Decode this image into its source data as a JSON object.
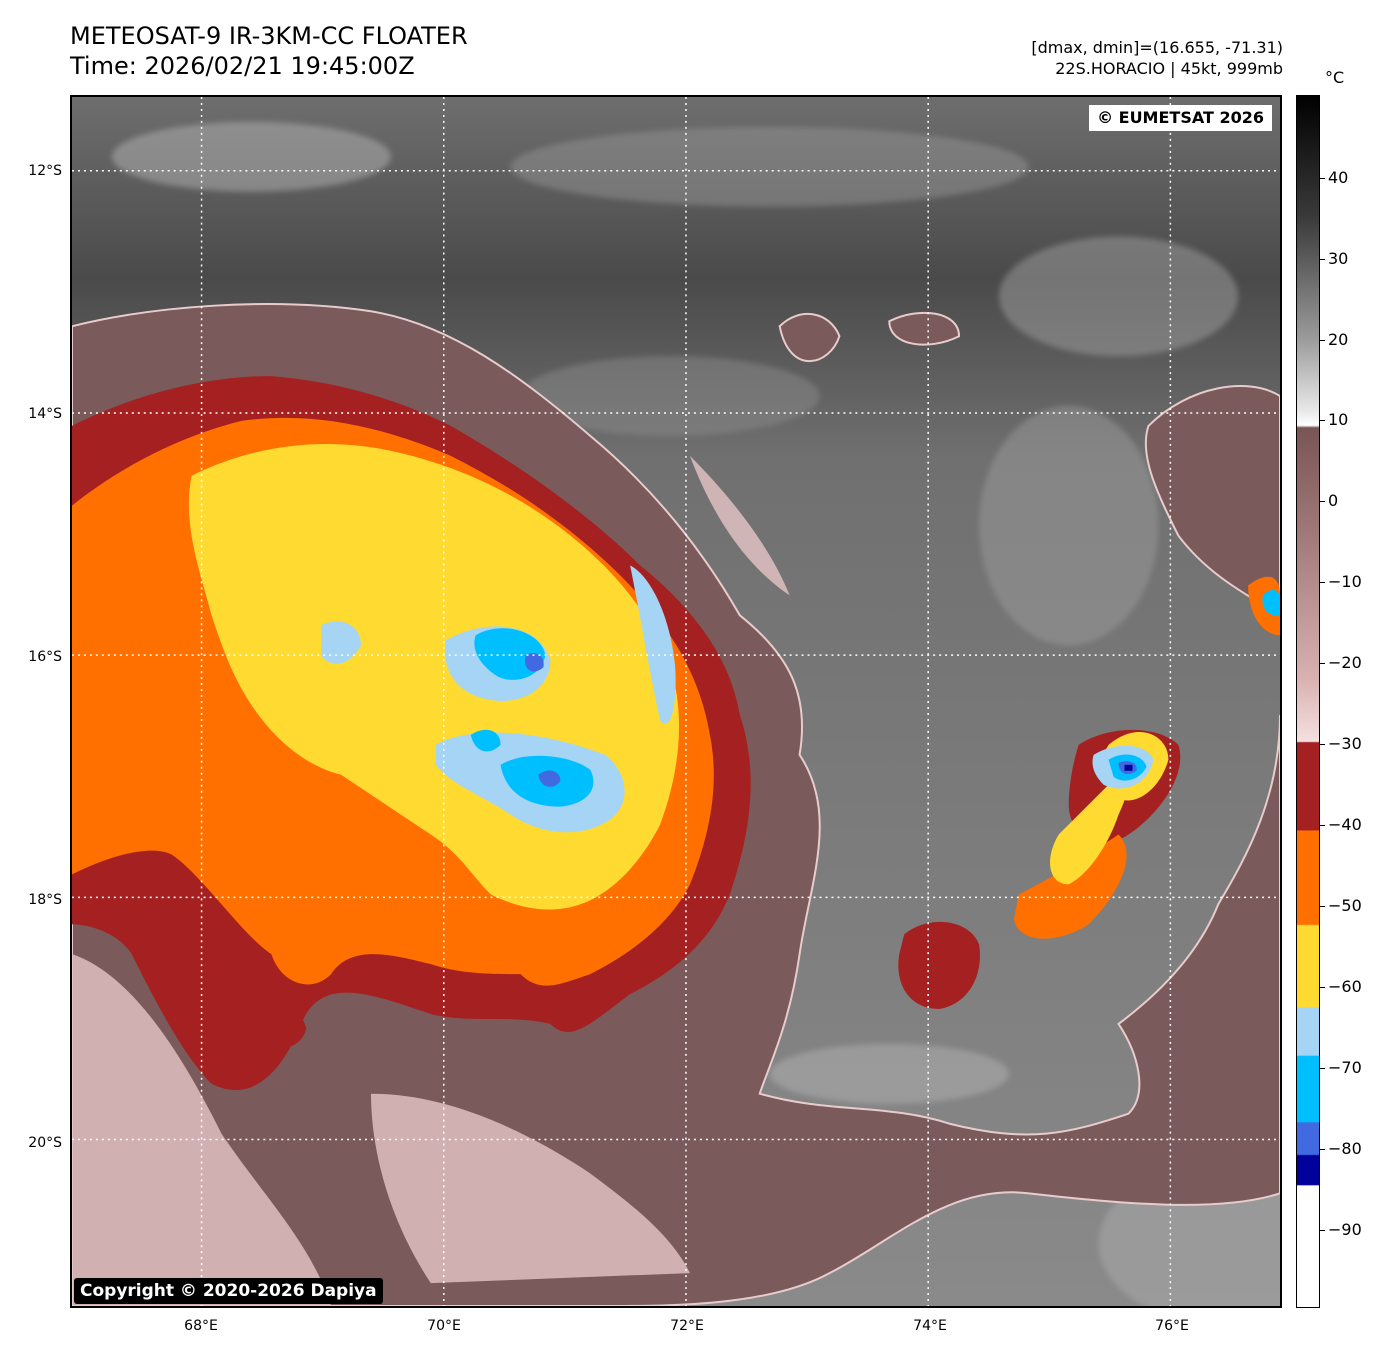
{
  "header": {
    "title": "METEOSAT-9 IR-3KM-CC FLOATER",
    "time": "Time: 2026/02/21 19:45:00Z",
    "dmax_dmin": "[dmax, dmin]=(16.655, -71.31)",
    "storm": "22S.HORACIO | 45kt, 999mb"
  },
  "map": {
    "eumetsat_credit": "© EUMETSAT 2026",
    "copyright": "Copyright © 2020-2026 Dapiya",
    "lat_labels": [
      "12°S",
      "14°S",
      "16°S",
      "18°S",
      "20°S"
    ],
    "lon_labels": [
      "68°E",
      "70°E",
      "72°E",
      "74°E",
      "76°E"
    ],
    "gridlines": "dotted white"
  },
  "colorbar": {
    "unit": "°C",
    "ticks": [
      "40",
      "30",
      "20",
      "10",
      "0",
      "−10",
      "−20",
      "−30",
      "−40",
      "−50",
      "−60",
      "−70",
      "−80",
      "−90"
    ],
    "colors": {
      "warm_black": "#000000",
      "warm_gray": "#808080",
      "white": "#ffffff",
      "brown_light": "#f5d8d8",
      "brown_dark": "#7a5555",
      "dark_red": "#a52020",
      "orange": "#ff7000",
      "yellow": "#ffda30",
      "light_blue": "#a6d4f5",
      "cyan": "#00bfff",
      "royal_blue": "#4169e1",
      "navy": "#00009a",
      "coldest_white": "#ffffff"
    }
  }
}
